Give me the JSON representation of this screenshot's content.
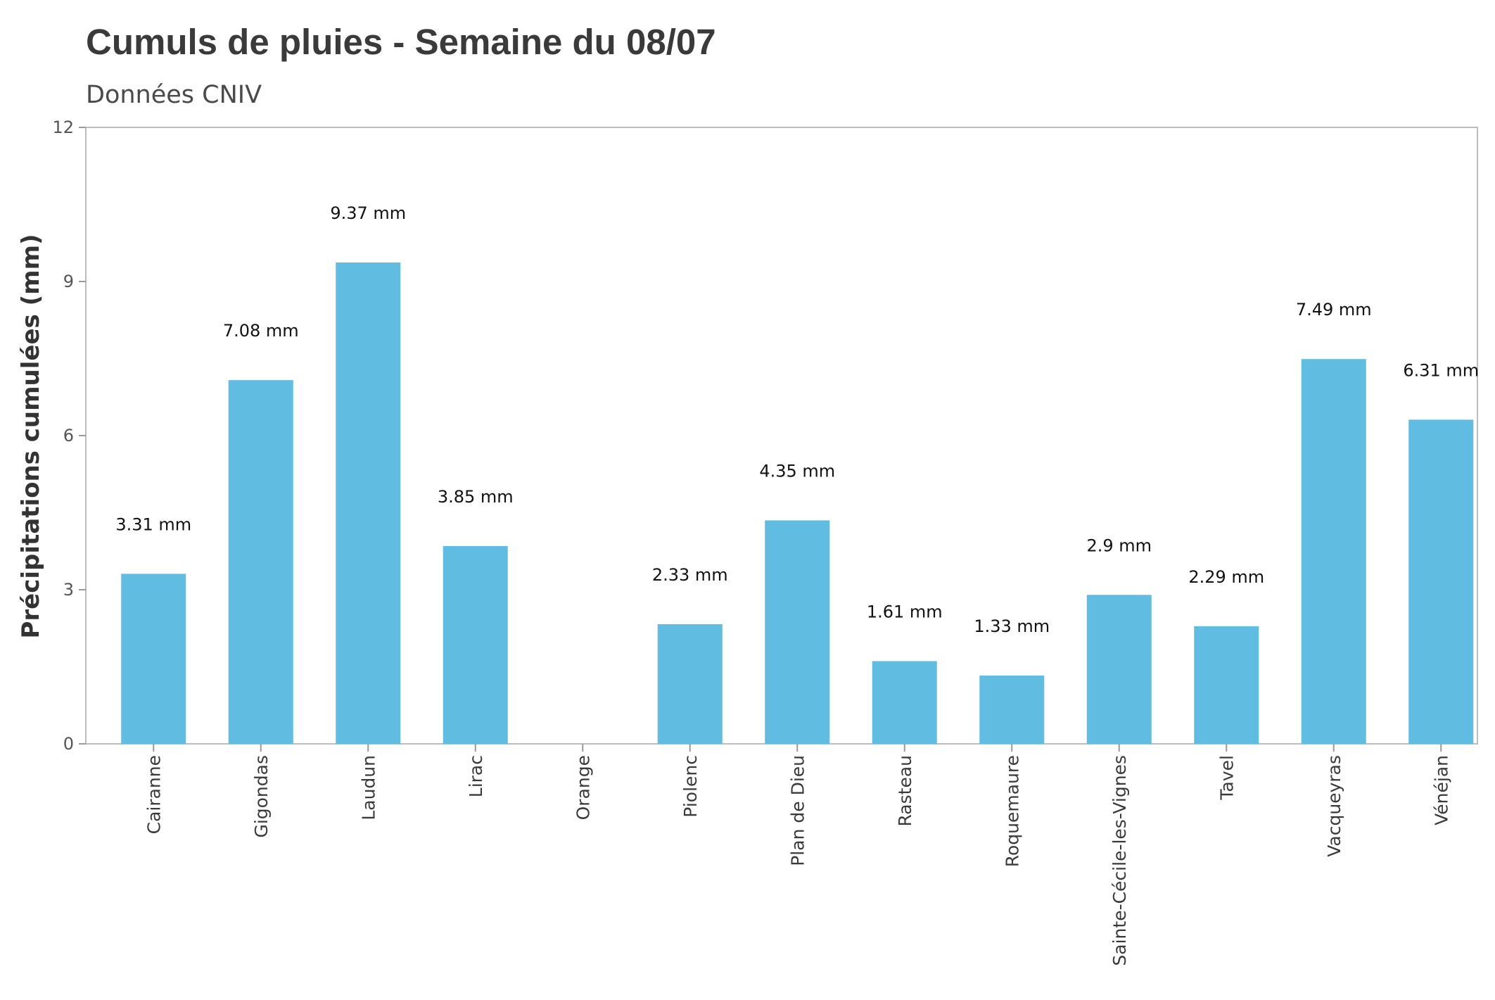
{
  "chart_data": {
    "type": "bar",
    "title": "Cumuls de pluies  - Semaine du 08/07",
    "subtitle": "Données CNIV",
    "xlabel": "",
    "ylabel": "Précipitations cumulées (mm)",
    "ylim": [
      0,
      12
    ],
    "yticks": [
      0,
      3,
      6,
      9,
      12
    ],
    "categories": [
      "Cairanne",
      "Gigondas",
      "Laudun",
      "Lirac",
      "Orange",
      "Piolenc",
      "Plan de Dieu",
      "Rasteau",
      "Roquemaure",
      "Sainte-Cécile-les-Vignes",
      "Tavel",
      "Vacqueyras",
      "Vénéjan"
    ],
    "values": [
      3.31,
      7.08,
      9.37,
      3.85,
      null,
      2.33,
      4.35,
      1.61,
      1.33,
      2.9,
      2.29,
      7.49,
      6.31
    ],
    "data_labels": [
      "3.31 mm",
      "7.08 mm",
      "9.37 mm",
      "3.85 mm",
      "",
      "2.33 mm",
      "4.35 mm",
      "1.61 mm",
      "1.33 mm",
      "2.9 mm",
      "2.29 mm",
      "7.49 mm",
      "6.31 mm"
    ],
    "bar_color": "#61bce1",
    "grid": false,
    "legend": "none"
  }
}
